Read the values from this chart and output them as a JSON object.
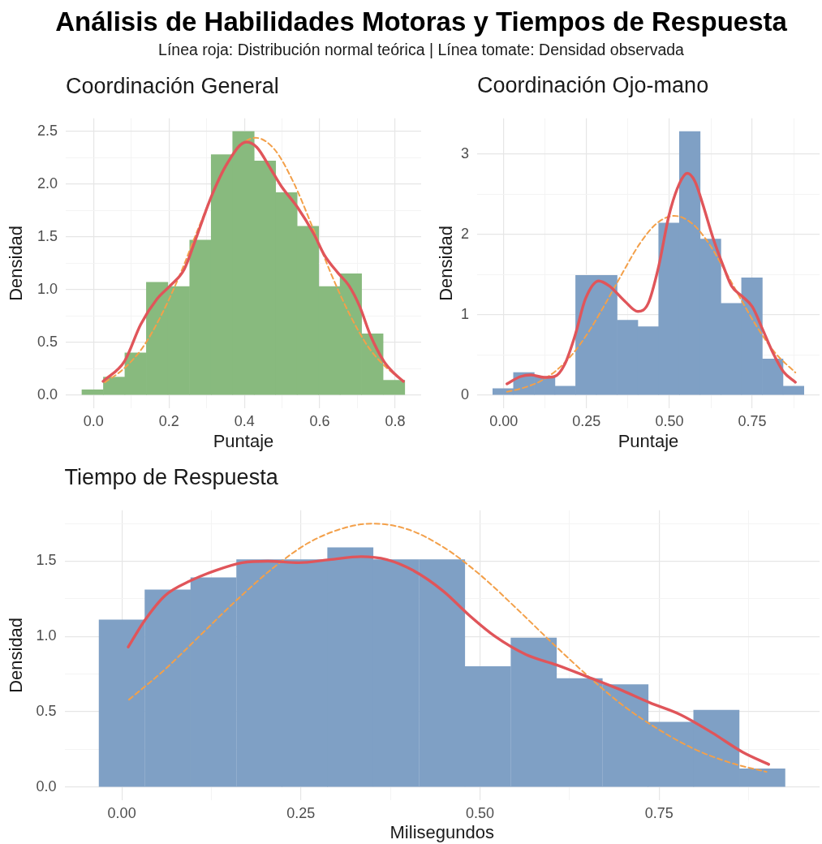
{
  "chart_data": [
    {
      "type": "other",
      "title": "Análisis de Habilidades Motoras y Tiempos de Respuesta",
      "subtitle": "Línea roja: Distribución normal teórica | Línea tomate: Densidad observada"
    },
    {
      "type": "histogram",
      "title": "Coordinación General",
      "xlabel": "Puntaje",
      "ylabel": "Densidad",
      "color": "#88ba7e",
      "bins": [
        -0.031,
        0.026,
        0.083,
        0.14,
        0.197,
        0.255,
        0.312,
        0.369,
        0.426,
        0.483,
        0.54,
        0.597,
        0.654,
        0.711,
        0.768,
        0.826
      ],
      "values": [
        0.05,
        0.17,
        0.4,
        1.07,
        1.03,
        1.47,
        2.28,
        2.5,
        2.22,
        1.92,
        1.6,
        1.03,
        1.15,
        0.58,
        0.14
      ],
      "series": [
        {
          "type": "line",
          "color": "#f3a04a",
          "line_style": "dashed",
          "x": [
            0.03,
            0.08,
            0.13,
            0.18,
            0.23,
            0.28,
            0.33,
            0.38,
            0.43,
            0.48,
            0.53,
            0.58,
            0.63,
            0.68,
            0.73,
            0.78,
            0.82
          ],
          "values": [
            0.12,
            0.25,
            0.45,
            0.76,
            1.15,
            1.6,
            2.02,
            2.33,
            2.44,
            2.33,
            2.02,
            1.6,
            1.15,
            0.76,
            0.45,
            0.25,
            0.14
          ]
        },
        {
          "type": "line",
          "color": "#e0555a",
          "line_style": "solid",
          "x": [
            0.025,
            0.082,
            0.125,
            0.168,
            0.204,
            0.24,
            0.269,
            0.312,
            0.355,
            0.405,
            0.433,
            0.469,
            0.498,
            0.541,
            0.584,
            0.612,
            0.648,
            0.677,
            0.706,
            0.734,
            0.77,
            0.799,
            0.822
          ],
          "values": [
            0.13,
            0.32,
            0.67,
            0.91,
            1.04,
            1.19,
            1.46,
            1.88,
            2.2,
            2.4,
            2.35,
            2.15,
            1.98,
            1.78,
            1.53,
            1.33,
            1.16,
            1.04,
            0.84,
            0.57,
            0.32,
            0.2,
            0.13
          ]
        }
      ],
      "xlim": [
        -0.074,
        0.869
      ],
      "ylim": [
        -0.125,
        2.625
      ],
      "xticks": [
        {
          "value": 0,
          "label": "0.0"
        },
        {
          "value": 0.1,
          "label": null
        },
        0.2,
        {
          "value": 0.3,
          "label": null
        },
        0.4,
        {
          "value": 0.5,
          "label": null
        },
        0.6,
        {
          "value": 0.7,
          "label": null
        },
        0.8
      ],
      "yticks": [
        {
          "value": 0,
          "label": "0.0"
        },
        {
          "value": 0.25,
          "label": null
        },
        0.5,
        {
          "value": 0.75,
          "label": null
        },
        {
          "value": 1,
          "label": "1.0"
        },
        {
          "value": 1.25,
          "label": null
        },
        1.5,
        {
          "value": 1.75,
          "label": null
        },
        {
          "value": 2,
          "label": "2.0"
        },
        {
          "value": 2.25,
          "label": null
        },
        2.5
      ],
      "grid": true
    },
    {
      "type": "histogram",
      "title": "Coordinación Ojo-mano",
      "xlabel": "Puntaje",
      "ylabel": "Densidad",
      "color": "#7fa0c5",
      "bins": [
        -0.033,
        0.03,
        0.092,
        0.155,
        0.217,
        0.28,
        0.342,
        0.405,
        0.468,
        0.53,
        0.593,
        0.655,
        0.718,
        0.78,
        0.843,
        0.906
      ],
      "values": [
        0.08,
        0.28,
        0.23,
        0.11,
        1.49,
        1.49,
        0.93,
        0.85,
        2.14,
        3.28,
        1.94,
        1.14,
        1.46,
        0.45,
        0.11
      ],
      "series": [
        {
          "type": "line",
          "color": "#f3a04a",
          "line_style": "dashed",
          "x": [
            0.01,
            0.06,
            0.11,
            0.16,
            0.21,
            0.26,
            0.31,
            0.36,
            0.41,
            0.46,
            0.515,
            0.57,
            0.62,
            0.67,
            0.72,
            0.77,
            0.82,
            0.88
          ],
          "values": [
            0.04,
            0.09,
            0.17,
            0.31,
            0.52,
            0.81,
            1.16,
            1.53,
            1.88,
            2.13,
            2.23,
            2.13,
            1.88,
            1.53,
            1.16,
            0.81,
            0.52,
            0.28
          ]
        },
        {
          "type": "line",
          "color": "#e0555a",
          "line_style": "solid",
          "x": [
            0.01,
            0.051,
            0.082,
            0.122,
            0.153,
            0.185,
            0.216,
            0.247,
            0.287,
            0.318,
            0.365,
            0.405,
            0.436,
            0.467,
            0.499,
            0.53,
            0.554,
            0.577,
            0.601,
            0.632,
            0.664,
            0.687,
            0.719,
            0.75,
            0.782,
            0.813,
            0.844,
            0.88
          ],
          "values": [
            0.14,
            0.23,
            0.25,
            0.22,
            0.23,
            0.39,
            0.75,
            1.2,
            1.42,
            1.36,
            1.17,
            1.04,
            1.14,
            1.59,
            2.24,
            2.63,
            2.76,
            2.66,
            2.37,
            1.95,
            1.59,
            1.36,
            1.23,
            1.1,
            0.81,
            0.52,
            0.29,
            0.16
          ]
        }
      ],
      "xlim": [
        -0.08,
        0.953
      ],
      "ylim": [
        -0.164,
        3.444
      ],
      "xticks": [
        {
          "value": 0,
          "label": "0.00"
        },
        {
          "value": 0.125,
          "label": null
        },
        0.25,
        {
          "value": 0.375,
          "label": null
        },
        {
          "value": 0.5,
          "label": "0.50"
        },
        {
          "value": 0.625,
          "label": null
        },
        0.75,
        {
          "value": 0.875,
          "label": null
        }
      ],
      "yticks": [
        0,
        {
          "value": 0.5,
          "label": null
        },
        1,
        {
          "value": 1.5,
          "label": null
        },
        2,
        {
          "value": 2.5,
          "label": null
        },
        3
      ],
      "grid": true
    },
    {
      "type": "histogram",
      "title": "Tiempo de Respuesta",
      "xlabel": "Milisegundos",
      "ylabel": "Densidad",
      "color": "#7fa0c5",
      "bins": [
        -0.032,
        0.032,
        0.096,
        0.16,
        0.224,
        0.287,
        0.351,
        0.415,
        0.479,
        0.543,
        0.607,
        0.671,
        0.735,
        0.798,
        0.862,
        0.926
      ],
      "values": [
        1.11,
        1.31,
        1.39,
        1.51,
        1.51,
        1.59,
        1.51,
        1.51,
        0.8,
        0.99,
        0.72,
        0.68,
        0.43,
        0.51,
        0.12
      ],
      "series": [
        {
          "type": "line",
          "color": "#f3a04a",
          "line_style": "dashed",
          "x": [
            0.01,
            0.06,
            0.11,
            0.16,
            0.21,
            0.26,
            0.31,
            0.35,
            0.4,
            0.45,
            0.5,
            0.55,
            0.6,
            0.65,
            0.7,
            0.75,
            0.8,
            0.85,
            0.9
          ],
          "values": [
            0.58,
            0.78,
            1.01,
            1.24,
            1.45,
            1.62,
            1.72,
            1.75,
            1.71,
            1.59,
            1.41,
            1.19,
            0.96,
            0.74,
            0.54,
            0.38,
            0.25,
            0.16,
            0.1
          ]
        },
        {
          "type": "line",
          "color": "#e0555a",
          "line_style": "solid",
          "x": [
            0.009,
            0.031,
            0.06,
            0.096,
            0.132,
            0.168,
            0.204,
            0.247,
            0.29,
            0.334,
            0.37,
            0.406,
            0.449,
            0.485,
            0.521,
            0.564,
            0.607,
            0.651,
            0.694,
            0.737,
            0.78,
            0.824,
            0.867,
            0.903
          ],
          "values": [
            0.93,
            1.1,
            1.27,
            1.37,
            1.44,
            1.49,
            1.5,
            1.49,
            1.51,
            1.53,
            1.51,
            1.44,
            1.3,
            1.14,
            1.0,
            0.88,
            0.81,
            0.73,
            0.65,
            0.56,
            0.48,
            0.36,
            0.23,
            0.15
          ]
        }
      ],
      "xlim": [
        -0.08,
        0.974
      ],
      "ylim": [
        -0.088,
        1.838
      ],
      "xticks": [
        {
          "value": 0,
          "label": "0.00"
        },
        {
          "value": 0.125,
          "label": null
        },
        0.25,
        {
          "value": 0.375,
          "label": null
        },
        {
          "value": 0.5,
          "label": "0.50"
        },
        {
          "value": 0.625,
          "label": null
        },
        0.75,
        {
          "value": 0.875,
          "label": null
        }
      ],
      "yticks": [
        {
          "value": 0,
          "label": "0.0"
        },
        {
          "value": 0.25,
          "label": null
        },
        0.5,
        {
          "value": 0.75,
          "label": null
        },
        {
          "value": 1,
          "label": "1.0"
        },
        {
          "value": 1.25,
          "label": null
        },
        1.5,
        {
          "value": 1.75,
          "label": null
        }
      ],
      "grid": true
    }
  ]
}
